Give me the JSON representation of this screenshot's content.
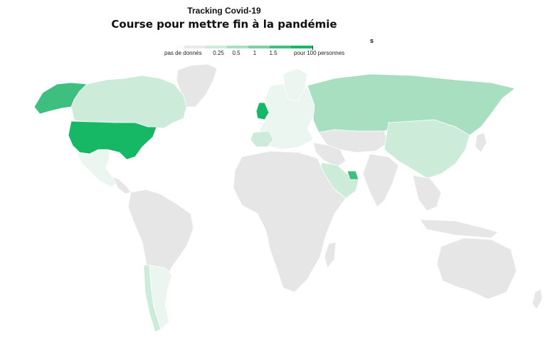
{
  "title": "Tracking Covid-19",
  "subtitle": "Course pour mettre fin à la pandémie",
  "stray_label": "s",
  "legend": {
    "no_data_label": "pas de donnés",
    "ticks": [
      "0.25",
      "0.5",
      "1",
      "1.5"
    ],
    "unit_label": "pour 100 personnes",
    "colors": [
      "#eaf6ef",
      "#cdebd9",
      "#a9dfc1",
      "#7fd0a4",
      "#3fbf7f",
      "#16b866"
    ],
    "no_data_color": "#e9e9e9"
  },
  "map": {
    "land_color": "#e6e6e6",
    "countries": [
      {
        "name": "United States",
        "level": 5
      },
      {
        "name": "Alaska",
        "level": 4
      },
      {
        "name": "Canada",
        "level": 1
      },
      {
        "name": "Mexico",
        "level": 0
      },
      {
        "name": "Russia",
        "level": 2
      },
      {
        "name": "China",
        "level": 1
      },
      {
        "name": "United Kingdom",
        "level": 5
      },
      {
        "name": "Saudi Arabia",
        "level": 1
      },
      {
        "name": "United Arab Emirates",
        "level": 4
      },
      {
        "name": "Chile",
        "level": 1
      },
      {
        "name": "Argentina",
        "level": 0
      }
    ]
  }
}
